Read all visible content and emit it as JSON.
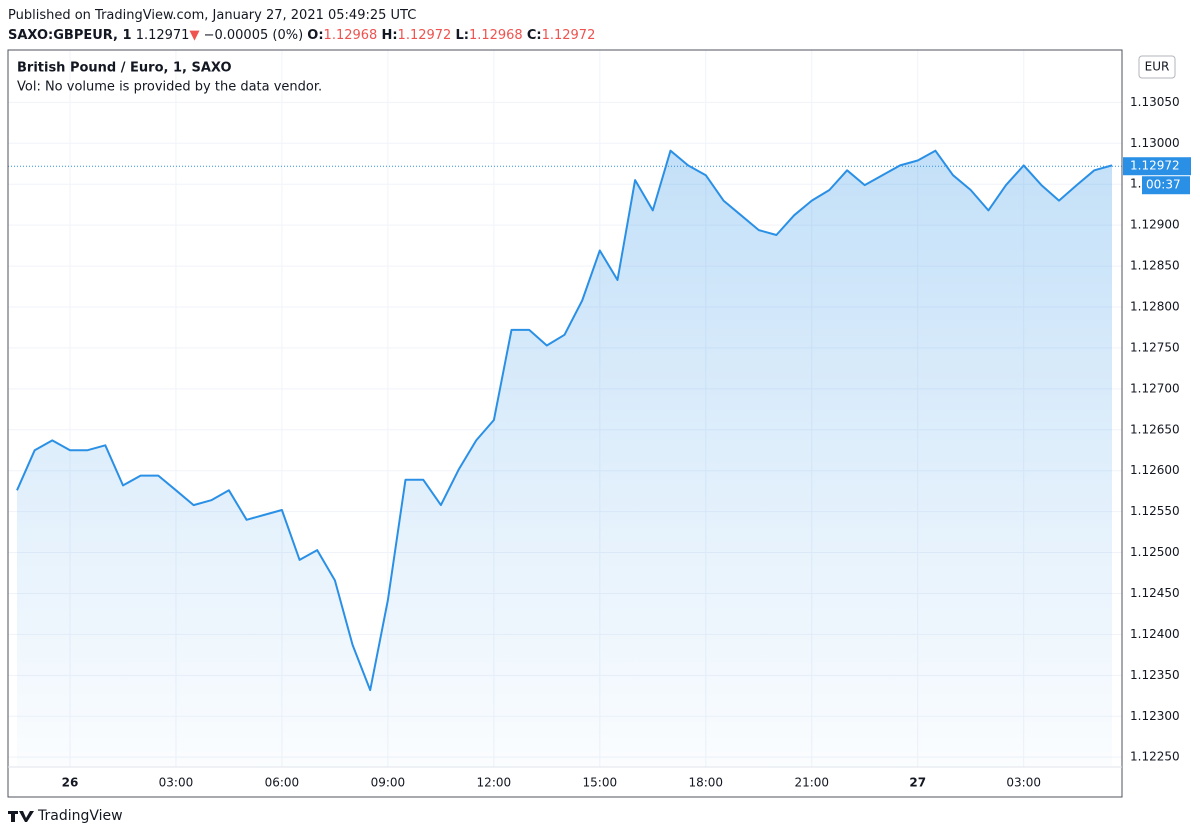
{
  "header": {
    "published": "Published on TradingView.com, January 27, 2021 05:49:25 UTC",
    "symbol": "SAXO:GBPEUR, 1",
    "price": "1.12971",
    "arrow": "▼",
    "change": "−0.00005 (0%)",
    "open_label": "O:",
    "open": "1.12968",
    "high_label": "H:",
    "high": "1.12972",
    "low_label": "L:",
    "low": "1.12968",
    "close_label": "C:",
    "close": "1.12972"
  },
  "chart_data": {
    "type": "area",
    "title": "British Pound / Euro, 1, SAXO",
    "subtitle": "Vol: No volume is provided by the data vendor.",
    "currency": "EUR",
    "countdown": "00:37",
    "last_price": 1.12972,
    "categories": [
      null,
      null,
      null,
      "26",
      null,
      null,
      null,
      null,
      null,
      "03:00",
      null,
      null,
      null,
      null,
      null,
      "06:00",
      null,
      null,
      null,
      null,
      null,
      "09:00",
      null,
      null,
      null,
      null,
      null,
      "12:00",
      null,
      null,
      null,
      null,
      null,
      "15:00",
      null,
      null,
      null,
      null,
      null,
      "18:00",
      null,
      null,
      null,
      null,
      null,
      "21:00",
      null,
      null,
      null,
      null,
      null,
      "27",
      null,
      null,
      null,
      null,
      null,
      "03:00",
      null,
      null,
      null,
      null,
      null
    ],
    "series": [
      {
        "name": "GBPEUR",
        "color": "#2a90e6",
        "values": [
          1.12576,
          1.12625,
          1.12637,
          1.12625,
          1.12625,
          1.12631,
          1.12582,
          1.12594,
          1.12594,
          1.12576,
          1.12558,
          1.12564,
          1.12576,
          1.1254,
          1.12546,
          1.12552,
          1.12491,
          1.12503,
          1.12466,
          1.12387,
          1.12332,
          1.12442,
          1.12589,
          1.12589,
          1.12558,
          1.12601,
          1.12637,
          1.12662,
          1.12772,
          1.12772,
          1.12753,
          1.12766,
          1.12808,
          1.12869,
          1.12833,
          1.12955,
          1.12918,
          1.12991,
          1.12973,
          1.12961,
          1.1293,
          1.12912,
          1.12894,
          1.12888,
          1.12912,
          1.1293,
          1.12943,
          1.12967,
          1.12949,
          1.12961,
          1.12973,
          1.12979,
          1.12991,
          1.12961,
          1.12943,
          1.12918,
          1.12949,
          1.12973,
          1.12949,
          1.1293,
          1.12949,
          1.12967,
          1.12973
        ]
      }
    ],
    "ylim": [
      1.12238,
      1.13114
    ],
    "yticks": [
      {
        "value": 1.1225,
        "label": "1.12250"
      },
      {
        "value": 1.123,
        "label": "1.12300"
      },
      {
        "value": 1.1235,
        "label": "1.12350"
      },
      {
        "value": 1.124,
        "label": "1.12400"
      },
      {
        "value": 1.1245,
        "label": "1.12450"
      },
      {
        "value": 1.125,
        "label": "1.12500"
      },
      {
        "value": 1.1255,
        "label": "1.12550"
      },
      {
        "value": 1.126,
        "label": "1.12600"
      },
      {
        "value": 1.1265,
        "label": "1.12650"
      },
      {
        "value": 1.127,
        "label": "1.12700"
      },
      {
        "value": 1.1275,
        "label": "1.12750"
      },
      {
        "value": 1.128,
        "label": "1.12800"
      },
      {
        "value": 1.1285,
        "label": "1.12850"
      },
      {
        "value": 1.129,
        "label": "1.12900"
      },
      {
        "value": 1.1295,
        "label": "1.12950"
      },
      {
        "value": 1.13,
        "label": "1.13000"
      },
      {
        "value": 1.1305,
        "label": "1.13050"
      }
    ],
    "grid": true
  },
  "footer": {
    "brand": "TradingView"
  }
}
